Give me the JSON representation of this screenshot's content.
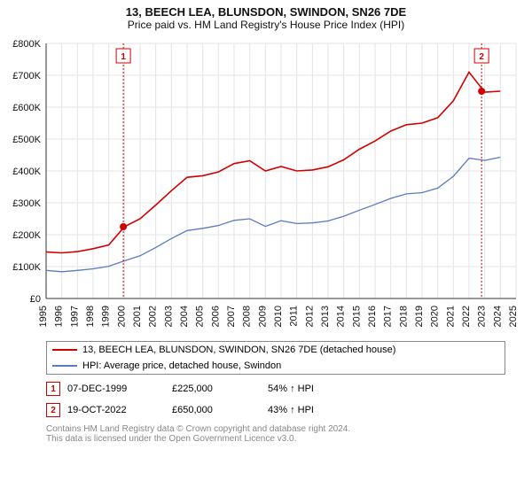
{
  "title": "13, BEECH LEA, BLUNSDON, SWINDON, SN26 7DE",
  "subtitle": "Price paid vs. HM Land Registry's House Price Index (HPI)",
  "chart": {
    "type": "line",
    "background_color": "#ffffff",
    "grid_color": "#e3e3e3",
    "axis_color": "#333333",
    "x_years": [
      1995,
      1996,
      1997,
      1998,
      1999,
      2000,
      2001,
      2002,
      2003,
      2004,
      2005,
      2006,
      2007,
      2008,
      2009,
      2010,
      2011,
      2012,
      2013,
      2014,
      2015,
      2016,
      2017,
      2018,
      2019,
      2020,
      2021,
      2022,
      2023,
      2024,
      2025
    ],
    "ylim": [
      0,
      800000
    ],
    "ytick_step": 100000,
    "ytick_labels": [
      "£0",
      "£100K",
      "£200K",
      "£300K",
      "£400K",
      "£500K",
      "£600K",
      "£700K",
      "£800K"
    ],
    "series": [
      {
        "name": "property",
        "label": "13, BEECH LEA, BLUNSDON, SWINDON, SN26 7DE (detached house)",
        "color": "#d10000",
        "line_width": 1.6,
        "values": [
          146000,
          143000,
          147000,
          156000,
          168000,
          225000,
          250000,
          293000,
          338000,
          380000,
          385000,
          397000,
          423000,
          432000,
          400000,
          414000,
          400000,
          403000,
          413000,
          435000,
          468000,
          494000,
          525000,
          545000,
          550000,
          567000,
          620000,
          710000,
          647000,
          650000,
          null
        ]
      },
      {
        "name": "hpi",
        "label": "HPI: Average price, detached house, Swindon",
        "color": "#5a7bbf",
        "line_width": 1.3,
        "values": [
          88000,
          84000,
          88000,
          93000,
          101000,
          118000,
          134000,
          160000,
          188000,
          213000,
          220000,
          229000,
          245000,
          250000,
          226000,
          244000,
          235000,
          237000,
          243000,
          258000,
          277000,
          295000,
          314000,
          328000,
          332000,
          346000,
          383000,
          440000,
          433000,
          443000,
          null
        ]
      }
    ],
    "sale_markers": [
      {
        "num": "1",
        "year": 1999.93,
        "value": 225000,
        "color": "#d10000"
      },
      {
        "num": "2",
        "year": 2022.8,
        "value": 650000,
        "color": "#d10000"
      }
    ],
    "marker_line_color": "#d10000",
    "marker_dot_fill": "#d10000",
    "title_fontsize": 13,
    "label_fontsize": 11
  },
  "legend": [
    {
      "color": "#d10000",
      "text": "13, BEECH LEA, BLUNSDON, SWINDON, SN26 7DE (detached house)"
    },
    {
      "color": "#5a7bbf",
      "text": "HPI: Average price, detached house, Swindon"
    }
  ],
  "sales": [
    {
      "num": "1",
      "color": "#d10000",
      "date": "07-DEC-1999",
      "price": "£225,000",
      "delta": "54% ↑ HPI"
    },
    {
      "num": "2",
      "color": "#d10000",
      "date": "19-OCT-2022",
      "price": "£650,000",
      "delta": "43% ↑ HPI"
    }
  ],
  "footer_line1": "Contains HM Land Registry data © Crown copyright and database right 2024.",
  "footer_line2": "This data is licensed under the Open Government Licence v3.0."
}
